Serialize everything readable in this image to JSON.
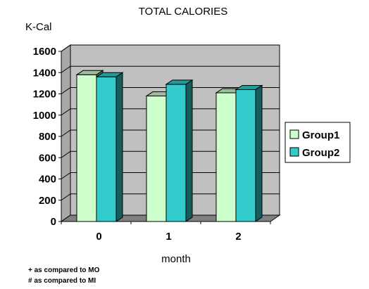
{
  "chart_data": {
    "type": "bar",
    "title": "TOTAL CALORIES",
    "ylabel": "K-Cal",
    "xlabel": "month",
    "categories": [
      "0",
      "1",
      "2"
    ],
    "series": [
      {
        "name": "Group1",
        "values": [
          1380,
          1180,
          1210
        ],
        "color": "#ccffcc"
      },
      {
        "name": "Group2",
        "values": [
          1360,
          1290,
          1240
        ],
        "color": "#33cccc"
      }
    ],
    "ylim": [
      0,
      1600
    ],
    "yticks": [
      0,
      200,
      400,
      600,
      800,
      1000,
      1200,
      1400,
      1600
    ],
    "grid": true,
    "legend": "right",
    "plot_background": "#c0c0c0",
    "notes": [
      "+ as compared to MO",
      "# as compared to MI"
    ]
  }
}
